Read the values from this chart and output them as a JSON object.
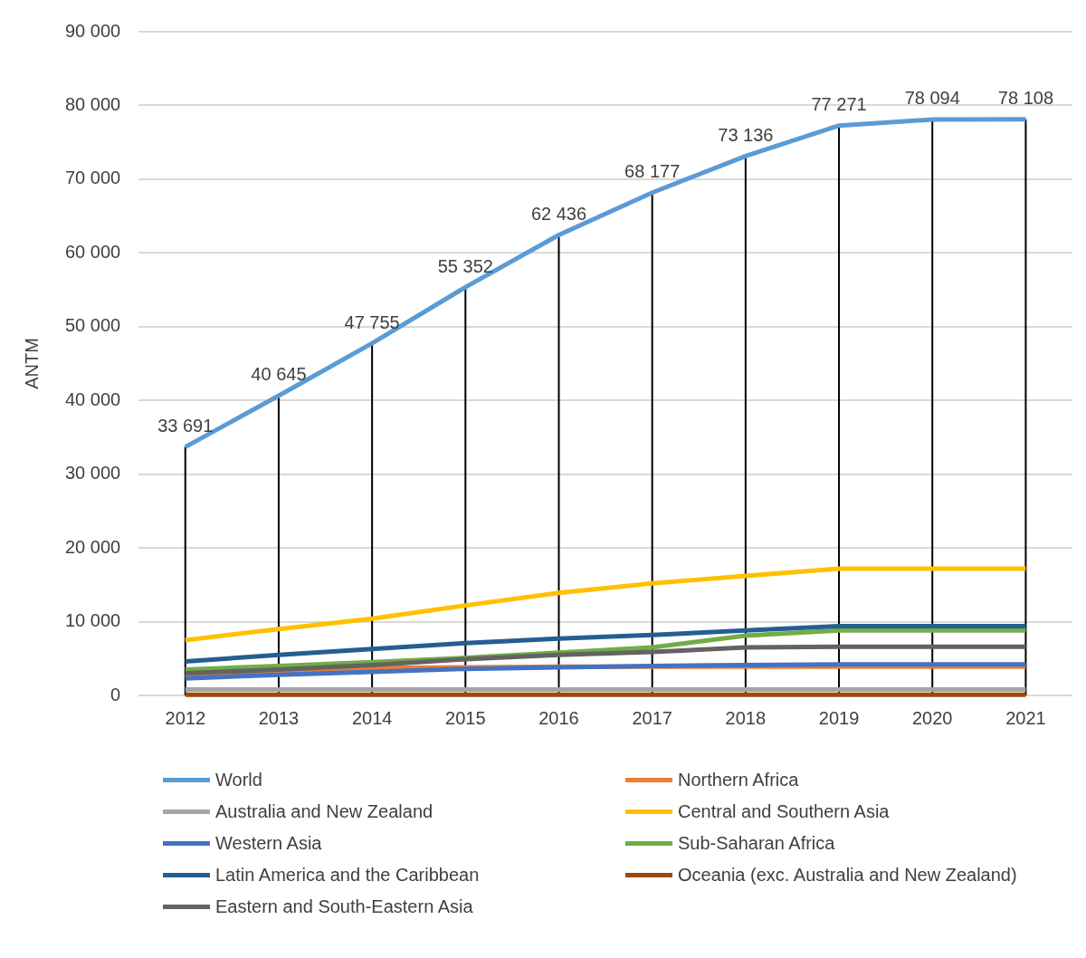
{
  "chart_data": {
    "type": "line",
    "ylabel": "ANTM",
    "categories": [
      "2012",
      "2013",
      "2014",
      "2015",
      "2016",
      "2017",
      "2018",
      "2019",
      "2020",
      "2021"
    ],
    "series": [
      {
        "name": "World",
        "color": "#5b9bd5",
        "values": [
          33691,
          40645,
          47755,
          55352,
          62436,
          68177,
          73136,
          77271,
          78094,
          78108
        ],
        "value_labels": [
          "33 691",
          "40 645",
          "47 755",
          "55 352",
          "62 436",
          "68 177",
          "73 136",
          "77 271",
          "78 094",
          "78 108"
        ]
      },
      {
        "name": "Northern Africa",
        "color": "#ed7d31",
        "values": [
          2600,
          3200,
          3700,
          3800,
          3900,
          3900,
          3900,
          3900,
          3900,
          3900
        ]
      },
      {
        "name": "Australia and New Zealand",
        "color": "#a5a5a5",
        "values": [
          800,
          800,
          800,
          800,
          800,
          800,
          800,
          800,
          800,
          800
        ]
      },
      {
        "name": "Central and Southern Asia",
        "color": "#ffc000",
        "values": [
          7500,
          9000,
          10400,
          12200,
          13900,
          15200,
          16200,
          17200,
          17200,
          17200
        ]
      },
      {
        "name": "Western Asia",
        "color": "#4472c4",
        "values": [
          2300,
          2800,
          3200,
          3600,
          3800,
          4000,
          4100,
          4200,
          4200,
          4200
        ]
      },
      {
        "name": "Sub-Saharan Africa",
        "color": "#70ad47",
        "values": [
          3500,
          4000,
          4500,
          5100,
          5800,
          6500,
          8100,
          8800,
          8800,
          8800
        ]
      },
      {
        "name": "Latin America and the Caribbean",
        "color": "#255e91",
        "values": [
          4600,
          5500,
          6300,
          7100,
          7700,
          8200,
          8800,
          9400,
          9400,
          9400
        ]
      },
      {
        "name": "Oceania (exc. Australia and New Zealand)",
        "color": "#9e480e",
        "values": [
          100,
          100,
          100,
          100,
          100,
          100,
          100,
          100,
          100,
          100
        ]
      },
      {
        "name": "Eastern and South-Eastern Asia",
        "color": "#636363",
        "values": [
          3000,
          3500,
          4100,
          4900,
          5500,
          5900,
          6500,
          6600,
          6600,
          6600
        ]
      }
    ],
    "ylim": [
      0,
      90000
    ],
    "yticks": [
      {
        "value": 0,
        "label": "0"
      },
      {
        "value": 10000,
        "label": "10 000"
      },
      {
        "value": 20000,
        "label": "20 000"
      },
      {
        "value": 30000,
        "label": "30 000"
      },
      {
        "value": 40000,
        "label": "40 000"
      },
      {
        "value": 50000,
        "label": "50 000"
      },
      {
        "value": 60000,
        "label": "60 000"
      },
      {
        "value": 70000,
        "label": "70 000"
      },
      {
        "value": 80000,
        "label": "80 000"
      },
      {
        "value": 90000,
        "label": "90 000"
      }
    ],
    "grid": true,
    "legend": "bottom",
    "marker": "none",
    "line_style": "solid"
  }
}
